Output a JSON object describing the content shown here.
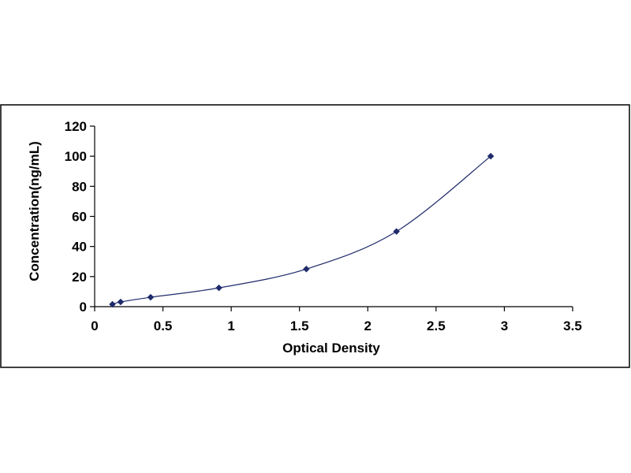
{
  "chart_data": {
    "type": "scatter",
    "title": "",
    "xlabel": "Optical Density",
    "ylabel": "Concentration(ng/mL)",
    "xlim": [
      0,
      3.5
    ],
    "ylim": [
      0,
      120
    ],
    "x_ticks": [
      "0",
      "0.5",
      "1",
      "1.5",
      "2",
      "2.5",
      "3",
      "3.5"
    ],
    "y_ticks": [
      "0",
      "20",
      "40",
      "60",
      "80",
      "100",
      "120"
    ],
    "grid": false,
    "legend": "none",
    "series": [
      {
        "marker": "diamond",
        "color": "#1f2a6b",
        "x": [
          0.13,
          0.19,
          0.41,
          0.91,
          1.55,
          2.21,
          2.9
        ],
        "y": [
          1.56,
          3.12,
          6.25,
          12.5,
          25,
          50,
          100
        ],
        "trendline": "polynomial"
      }
    ]
  }
}
